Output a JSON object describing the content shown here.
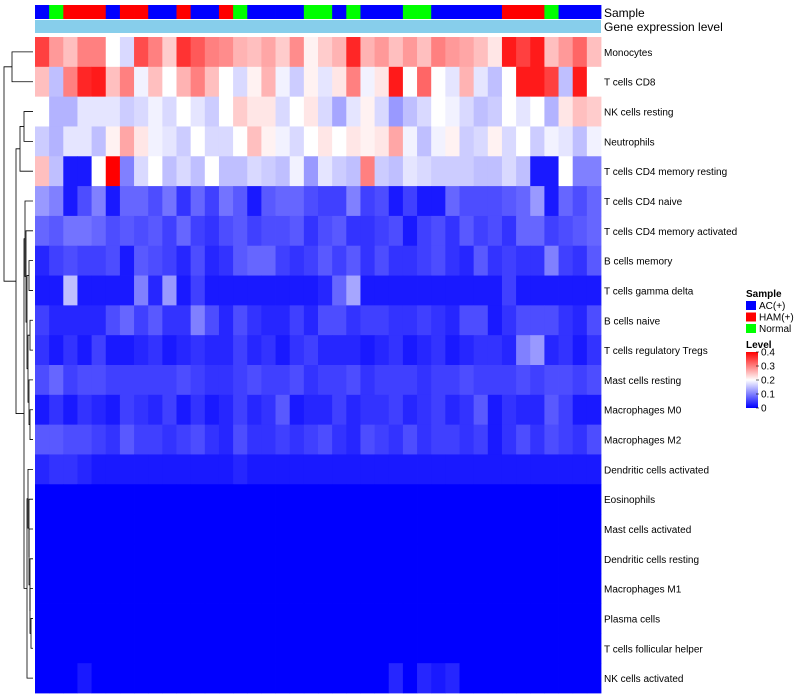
{
  "chart_data": {
    "type": "heatmap",
    "annotation_tracks": [
      "Sample",
      "Gene expression level"
    ],
    "legend": {
      "sample": {
        "title": "Sample",
        "entries": [
          {
            "label": "AC(+)",
            "color": "#0000ff"
          },
          {
            "label": "HAM(+)",
            "color": "#ff0000"
          },
          {
            "label": "Normal",
            "color": "#00ff00"
          }
        ]
      },
      "level": {
        "title": "Level",
        "ticks": [
          "0.4",
          "0.3",
          "0.2",
          "0.1",
          "0"
        ],
        "range": [
          0,
          0.4
        ],
        "colors": {
          "low": "#0000ff",
          "mid": "#ffffff",
          "high": "#ff0000",
          "mid_value": 0.2
        }
      }
    },
    "sample_groups": [
      "AC(+)",
      "Normal",
      "HAM(+)",
      "HAM(+)",
      "HAM(+)",
      "AC(+)",
      "HAM(+)",
      "HAM(+)",
      "AC(+)",
      "AC(+)",
      "HAM(+)",
      "AC(+)",
      "AC(+)",
      "HAM(+)",
      "Normal",
      "AC(+)",
      "AC(+)",
      "AC(+)",
      "AC(+)",
      "Normal",
      "Normal",
      "AC(+)",
      "Normal",
      "AC(+)",
      "AC(+)",
      "AC(+)",
      "Normal",
      "Normal",
      "AC(+)",
      "AC(+)",
      "AC(+)",
      "AC(+)",
      "AC(+)",
      "HAM(+)",
      "HAM(+)",
      "HAM(+)",
      "Normal",
      "AC(+)",
      "AC(+)",
      "AC(+)"
    ],
    "gene_expression_color": "#87ceeb",
    "rows": [
      {
        "name": "Monocytes",
        "values": [
          0.35,
          0.28,
          0.25,
          0.3,
          0.3,
          0.2,
          0.17,
          0.34,
          0.3,
          0.24,
          0.36,
          0.33,
          0.3,
          0.29,
          0.26,
          0.25,
          0.27,
          0.24,
          0.29,
          0.21,
          0.24,
          0.26,
          0.37,
          0.26,
          0.28,
          0.25,
          0.28,
          0.25,
          0.3,
          0.28,
          0.27,
          0.25,
          0.22,
          0.38,
          0.35,
          0.38,
          0.25,
          0.28,
          0.32,
          0.25
        ]
      },
      {
        "name": "T cells CD8",
        "values": [
          0.25,
          0.15,
          0.3,
          0.37,
          0.38,
          0.25,
          0.3,
          0.19,
          0.25,
          0.2,
          0.26,
          0.3,
          0.25,
          0.2,
          0.17,
          0.21,
          0.26,
          0.19,
          0.16,
          0.21,
          0.18,
          0.22,
          0.3,
          0.19,
          0.22,
          0.38,
          0.2,
          0.32,
          0.2,
          0.18,
          0.26,
          0.18,
          0.15,
          0.2,
          0.38,
          0.38,
          0.35,
          0.15,
          0.38,
          0.2
        ]
      },
      {
        "name": "NK cells resting",
        "values": [
          0.2,
          0.14,
          0.14,
          0.18,
          0.18,
          0.18,
          0.16,
          0.17,
          0.19,
          0.17,
          0.2,
          0.18,
          0.16,
          0.2,
          0.24,
          0.22,
          0.22,
          0.17,
          0.2,
          0.22,
          0.17,
          0.13,
          0.18,
          0.21,
          0.17,
          0.12,
          0.15,
          0.17,
          0.2,
          0.19,
          0.17,
          0.15,
          0.16,
          0.2,
          0.18,
          0.2,
          0.14,
          0.22,
          0.25,
          0.24
        ]
      },
      {
        "name": "Neutrophils",
        "values": [
          0.16,
          0.14,
          0.18,
          0.18,
          0.15,
          0.21,
          0.27,
          0.22,
          0.19,
          0.18,
          0.16,
          0.2,
          0.17,
          0.17,
          0.2,
          0.25,
          0.21,
          0.19,
          0.17,
          0.2,
          0.22,
          0.2,
          0.22,
          0.21,
          0.22,
          0.27,
          0.19,
          0.15,
          0.19,
          0.21,
          0.16,
          0.17,
          0.21,
          0.17,
          0.2,
          0.16,
          0.19,
          0.18,
          0.15,
          0.19
        ]
      },
      {
        "name": "T cells CD4 memory resting",
        "values": [
          0.25,
          0.15,
          0.02,
          0.02,
          0.2,
          0.4,
          0.1,
          0.17,
          0.2,
          0.15,
          0.17,
          0.15,
          0.2,
          0.15,
          0.15,
          0.17,
          0.16,
          0.15,
          0.19,
          0.12,
          0.18,
          0.16,
          0.15,
          0.3,
          0.16,
          0.15,
          0.18,
          0.17,
          0.16,
          0.16,
          0.16,
          0.15,
          0.15,
          0.17,
          0.15,
          0.02,
          0.02,
          0.2,
          0.1,
          0.1
        ]
      },
      {
        "name": "T cells CD4 naive",
        "values": [
          0.12,
          0.1,
          0.02,
          0.06,
          0.1,
          0.02,
          0.08,
          0.08,
          0.06,
          0.09,
          0.04,
          0.08,
          0.05,
          0.09,
          0.07,
          0.02,
          0.07,
          0.08,
          0.08,
          0.06,
          0.05,
          0.05,
          0.1,
          0.05,
          0.06,
          0.02,
          0.05,
          0.02,
          0.02,
          0.08,
          0.06,
          0.06,
          0.06,
          0.07,
          0.08,
          0.12,
          0.02,
          0.08,
          0.06,
          0.08
        ]
      },
      {
        "name": "T cells CD4 memory activated",
        "values": [
          0.08,
          0.07,
          0.09,
          0.09,
          0.08,
          0.06,
          0.07,
          0.06,
          0.07,
          0.05,
          0.08,
          0.05,
          0.04,
          0.06,
          0.07,
          0.05,
          0.06,
          0.06,
          0.07,
          0.04,
          0.06,
          0.07,
          0.04,
          0.04,
          0.05,
          0.06,
          0.02,
          0.05,
          0.06,
          0.04,
          0.07,
          0.05,
          0.06,
          0.04,
          0.08,
          0.08,
          0.05,
          0.06,
          0.07,
          0.08
        ]
      },
      {
        "name": "B cells memory",
        "values": [
          0.03,
          0.05,
          0.06,
          0.05,
          0.05,
          0.06,
          0.02,
          0.07,
          0.06,
          0.05,
          0.03,
          0.06,
          0.03,
          0.04,
          0.07,
          0.08,
          0.08,
          0.05,
          0.04,
          0.05,
          0.07,
          0.05,
          0.07,
          0.04,
          0.06,
          0.04,
          0.04,
          0.05,
          0.06,
          0.04,
          0.03,
          0.07,
          0.04,
          0.05,
          0.04,
          0.04,
          0.1,
          0.05,
          0.04,
          0.07
        ]
      },
      {
        "name": "T cells gamma delta",
        "values": [
          0.02,
          0.02,
          0.15,
          0.02,
          0.02,
          0.02,
          0.02,
          0.1,
          0.03,
          0.12,
          0.02,
          0.05,
          0.02,
          0.02,
          0.02,
          0.02,
          0.02,
          0.02,
          0.02,
          0.02,
          0.03,
          0.08,
          0.13,
          0.02,
          0.02,
          0.02,
          0.02,
          0.02,
          0.02,
          0.02,
          0.02,
          0.02,
          0.02,
          0.05,
          0.02,
          0.02,
          0.02,
          0.02,
          0.02,
          0.02
        ]
      },
      {
        "name": "B cells naive",
        "values": [
          0.05,
          0.03,
          0.03,
          0.03,
          0.03,
          0.06,
          0.08,
          0.05,
          0.07,
          0.04,
          0.04,
          0.1,
          0.06,
          0.03,
          0.06,
          0.04,
          0.03,
          0.03,
          0.05,
          0.03,
          0.06,
          0.06,
          0.04,
          0.05,
          0.05,
          0.04,
          0.04,
          0.05,
          0.04,
          0.03,
          0.06,
          0.06,
          0.02,
          0.04,
          0.06,
          0.06,
          0.06,
          0.04,
          0.03,
          0.06
        ]
      },
      {
        "name": "T cells regulatory  Tregs",
        "values": [
          0.04,
          0.02,
          0.04,
          0.02,
          0.05,
          0.02,
          0.02,
          0.03,
          0.04,
          0.02,
          0.03,
          0.04,
          0.03,
          0.03,
          0.05,
          0.03,
          0.04,
          0.02,
          0.04,
          0.05,
          0.03,
          0.03,
          0.03,
          0.02,
          0.03,
          0.04,
          0.02,
          0.03,
          0.04,
          0.02,
          0.03,
          0.04,
          0.04,
          0.03,
          0.1,
          0.12,
          0.03,
          0.04,
          0.02,
          0.04
        ]
      },
      {
        "name": "Mast cells resting",
        "values": [
          0.06,
          0.08,
          0.05,
          0.06,
          0.06,
          0.05,
          0.05,
          0.05,
          0.05,
          0.05,
          0.06,
          0.05,
          0.04,
          0.04,
          0.05,
          0.06,
          0.05,
          0.05,
          0.06,
          0.04,
          0.05,
          0.05,
          0.06,
          0.04,
          0.05,
          0.05,
          0.05,
          0.04,
          0.05,
          0.05,
          0.06,
          0.05,
          0.05,
          0.05,
          0.06,
          0.05,
          0.06,
          0.06,
          0.05,
          0.06
        ]
      },
      {
        "name": "Macrophages M0",
        "values": [
          0.02,
          0.04,
          0.02,
          0.04,
          0.03,
          0.02,
          0.05,
          0.04,
          0.03,
          0.05,
          0.02,
          0.04,
          0.02,
          0.03,
          0.05,
          0.03,
          0.04,
          0.07,
          0.02,
          0.03,
          0.03,
          0.05,
          0.03,
          0.04,
          0.04,
          0.05,
          0.03,
          0.04,
          0.05,
          0.03,
          0.04,
          0.07,
          0.02,
          0.04,
          0.03,
          0.03,
          0.07,
          0.05,
          0.02,
          0.02
        ]
      },
      {
        "name": "Macrophages M2",
        "values": [
          0.07,
          0.07,
          0.06,
          0.06,
          0.05,
          0.04,
          0.07,
          0.05,
          0.05,
          0.04,
          0.05,
          0.06,
          0.04,
          0.03,
          0.06,
          0.04,
          0.04,
          0.05,
          0.04,
          0.05,
          0.06,
          0.04,
          0.03,
          0.06,
          0.05,
          0.04,
          0.06,
          0.04,
          0.05,
          0.05,
          0.04,
          0.05,
          0.02,
          0.04,
          0.06,
          0.04,
          0.06,
          0.05,
          0.04,
          0.06
        ]
      },
      {
        "name": "Dendritic cells activated",
        "values": [
          0.03,
          0.04,
          0.04,
          0.03,
          0.02,
          0.02,
          0.02,
          0.02,
          0.02,
          0.02,
          0.02,
          0.02,
          0.02,
          0.02,
          0.03,
          0.02,
          0.02,
          0.02,
          0.02,
          0.02,
          0.02,
          0.02,
          0.02,
          0.02,
          0.02,
          0.02,
          0.02,
          0.02,
          0.02,
          0.02,
          0.02,
          0.02,
          0.02,
          0.02,
          0.02,
          0.02,
          0.02,
          0.02,
          0.02,
          0.02
        ]
      },
      {
        "name": "Eosinophils",
        "values": [
          0,
          0,
          0,
          0,
          0,
          0,
          0,
          0,
          0,
          0,
          0,
          0,
          0,
          0,
          0,
          0,
          0,
          0,
          0,
          0,
          0,
          0,
          0,
          0,
          0,
          0,
          0,
          0,
          0,
          0,
          0,
          0,
          0,
          0,
          0,
          0,
          0,
          0,
          0,
          0
        ]
      },
      {
        "name": "Mast cells activated",
        "values": [
          0,
          0,
          0,
          0,
          0,
          0,
          0,
          0,
          0,
          0,
          0,
          0,
          0,
          0,
          0,
          0,
          0,
          0,
          0,
          0,
          0,
          0,
          0,
          0,
          0,
          0,
          0,
          0,
          0,
          0,
          0,
          0,
          0,
          0,
          0,
          0,
          0,
          0,
          0,
          0
        ]
      },
      {
        "name": "Dendritic cells resting",
        "values": [
          0,
          0,
          0,
          0,
          0,
          0,
          0,
          0,
          0,
          0,
          0,
          0,
          0,
          0,
          0,
          0,
          0,
          0,
          0,
          0,
          0,
          0,
          0,
          0,
          0,
          0,
          0,
          0,
          0,
          0,
          0,
          0,
          0,
          0,
          0,
          0,
          0,
          0,
          0,
          0
        ]
      },
      {
        "name": "Macrophages M1",
        "values": [
          0,
          0,
          0,
          0,
          0,
          0,
          0,
          0,
          0,
          0,
          0,
          0,
          0,
          0,
          0,
          0,
          0,
          0,
          0,
          0,
          0,
          0,
          0,
          0,
          0,
          0,
          0,
          0,
          0,
          0,
          0,
          0,
          0,
          0,
          0,
          0,
          0,
          0,
          0,
          0
        ]
      },
      {
        "name": "Plasma cells",
        "values": [
          0,
          0,
          0,
          0,
          0,
          0,
          0,
          0,
          0,
          0,
          0,
          0,
          0,
          0,
          0,
          0,
          0,
          0,
          0,
          0,
          0,
          0,
          0,
          0,
          0,
          0,
          0,
          0,
          0,
          0,
          0,
          0,
          0,
          0,
          0,
          0,
          0,
          0,
          0,
          0
        ]
      },
      {
        "name": "T cells follicular helper",
        "values": [
          0,
          0,
          0,
          0,
          0,
          0,
          0,
          0,
          0,
          0,
          0,
          0,
          0,
          0,
          0,
          0,
          0,
          0,
          0,
          0,
          0,
          0,
          0,
          0,
          0,
          0,
          0,
          0,
          0,
          0,
          0,
          0,
          0,
          0,
          0,
          0,
          0,
          0,
          0,
          0
        ]
      },
      {
        "name": "NK cells activated",
        "values": [
          0,
          0,
          0,
          0.02,
          0,
          0,
          0,
          0,
          0,
          0,
          0,
          0,
          0,
          0,
          0,
          0,
          0,
          0,
          0,
          0,
          0,
          0,
          0,
          0,
          0,
          0.03,
          0,
          0.03,
          0.02,
          0.03,
          0,
          0,
          0,
          0,
          0,
          0,
          0,
          0,
          0,
          0
        ]
      }
    ]
  }
}
